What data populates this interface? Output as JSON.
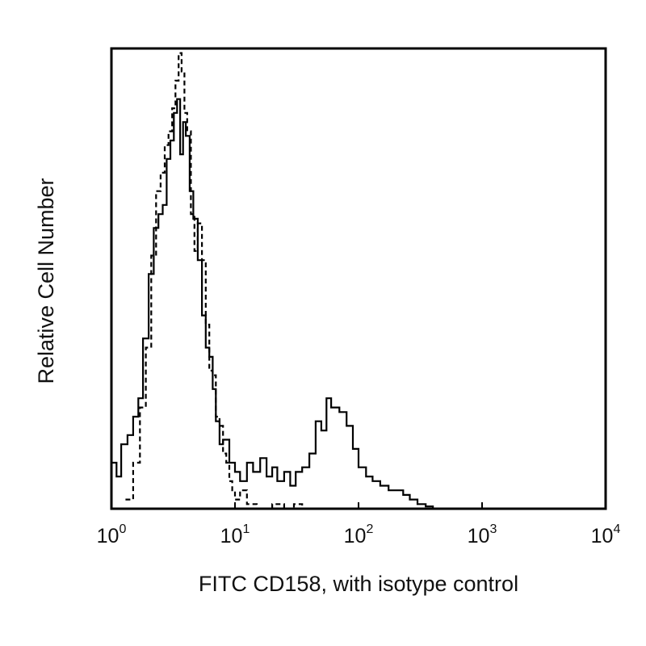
{
  "chart_data": {
    "type": "line",
    "title": "",
    "xlabel": "FITC CD158, with isotype control",
    "ylabel": "Relative Cell Number",
    "x_scale": "log",
    "xlim": [
      1,
      10000
    ],
    "ylim": [
      0,
      1
    ],
    "x_ticks": [
      {
        "base": "10",
        "exp": "0",
        "value": 1
      },
      {
        "base": "10",
        "exp": "1",
        "value": 10
      },
      {
        "base": "10",
        "exp": "2",
        "value": 100
      },
      {
        "base": "10",
        "exp": "3",
        "value": 1000
      },
      {
        "base": "10",
        "exp": "4",
        "value": 10000
      }
    ],
    "grid": false,
    "legend": "none",
    "series": [
      {
        "style": "solid",
        "color": "#000000",
        "x": [
          1.0,
          1.1,
          1.2,
          1.35,
          1.5,
          1.65,
          1.8,
          2.0,
          2.2,
          2.4,
          2.6,
          2.8,
          3.0,
          3.2,
          3.4,
          3.6,
          3.8,
          4.0,
          4.3,
          4.6,
          5.0,
          5.4,
          5.8,
          6.2,
          6.6,
          7.0,
          7.5,
          8.0,
          9.0,
          10.0,
          11.0,
          12.5,
          14.0,
          16.0,
          18.0,
          20.0,
          22.0,
          25.0,
          28.0,
          31.0,
          35.0,
          40.0,
          45.0,
          50.0,
          55.0,
          60.0,
          70.0,
          80.0,
          90.0,
          100.0,
          115.0,
          130.0,
          150.0,
          175.0,
          200.0,
          230.0,
          260.0,
          300.0,
          350.0,
          400.0
        ],
        "y": [
          0.1,
          0.07,
          0.14,
          0.16,
          0.2,
          0.24,
          0.37,
          0.51,
          0.61,
          0.64,
          0.66,
          0.76,
          0.8,
          0.86,
          0.89,
          0.77,
          0.84,
          0.81,
          0.69,
          0.63,
          0.54,
          0.42,
          0.35,
          0.33,
          0.26,
          0.19,
          0.14,
          0.15,
          0.1,
          0.08,
          0.06,
          0.1,
          0.08,
          0.11,
          0.07,
          0.09,
          0.06,
          0.08,
          0.05,
          0.08,
          0.09,
          0.12,
          0.19,
          0.17,
          0.24,
          0.22,
          0.21,
          0.18,
          0.13,
          0.09,
          0.07,
          0.06,
          0.05,
          0.04,
          0.04,
          0.03,
          0.02,
          0.01,
          0.005,
          0.0
        ]
      },
      {
        "style": "dashed",
        "color": "#000000",
        "x": [
          1.3,
          1.5,
          1.7,
          1.9,
          2.1,
          2.3,
          2.5,
          2.7,
          2.9,
          3.1,
          3.3,
          3.5,
          3.7,
          3.9,
          4.1,
          4.4,
          4.7,
          5.0,
          5.4,
          5.8,
          6.2,
          6.6,
          7.0,
          7.5,
          8.0,
          8.5,
          9.0,
          9.5,
          10.0,
          11.0,
          12.5,
          15.0,
          20.0,
          25.0,
          30.0,
          35.0
        ],
        "y": [
          0.02,
          0.1,
          0.22,
          0.35,
          0.55,
          0.69,
          0.73,
          0.79,
          0.82,
          0.87,
          0.93,
          0.99,
          0.95,
          0.86,
          0.82,
          0.64,
          0.56,
          0.62,
          0.54,
          0.4,
          0.3,
          0.29,
          0.2,
          0.18,
          0.12,
          0.1,
          0.06,
          0.04,
          0.02,
          0.04,
          0.01,
          0.0,
          0.01,
          0.0,
          0.01,
          0.0
        ]
      }
    ]
  }
}
